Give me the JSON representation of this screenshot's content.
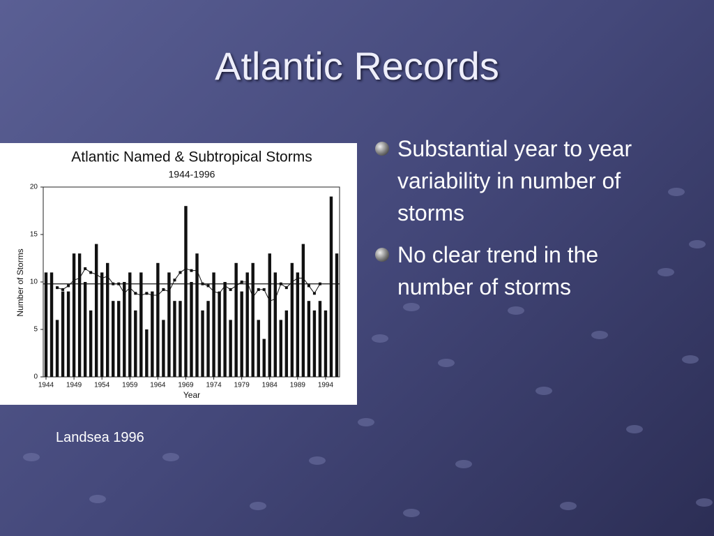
{
  "title": "Atlantic Records",
  "bullets": [
    "Substantial year to year variability in number of storms",
    "No clear trend in the number of storms"
  ],
  "caption": "Landsea 1996",
  "chart_data": {
    "type": "bar",
    "title": "Atlantic Named & Subtropical Storms",
    "subtitle": "1944-1996",
    "x_label": "Year",
    "y_label": "Number of Storms",
    "x": [
      1944,
      1945,
      1946,
      1947,
      1948,
      1949,
      1950,
      1951,
      1952,
      1953,
      1954,
      1955,
      1956,
      1957,
      1958,
      1959,
      1960,
      1961,
      1962,
      1963,
      1964,
      1965,
      1966,
      1967,
      1968,
      1969,
      1970,
      1971,
      1972,
      1973,
      1974,
      1975,
      1976,
      1977,
      1978,
      1979,
      1980,
      1981,
      1982,
      1983,
      1984,
      1985,
      1986,
      1987,
      1988,
      1989,
      1990,
      1991,
      1992,
      1993,
      1994,
      1995,
      1996
    ],
    "series": [
      {
        "type": "bar",
        "color": "#111111",
        "values": [
          11,
          11,
          6,
          9,
          9,
          13,
          13,
          10,
          7,
          14,
          11,
          12,
          8,
          8,
          10,
          11,
          7,
          11,
          5,
          9,
          12,
          6,
          11,
          8,
          8,
          18,
          10,
          13,
          7,
          8,
          11,
          9,
          10,
          6,
          12,
          9,
          11,
          12,
          6,
          4,
          13,
          11,
          6,
          7,
          12,
          11,
          14,
          8,
          7,
          8,
          7,
          19,
          13
        ]
      },
      {
        "type": "line",
        "color": "#111111",
        "values": [
          null,
          null,
          9.4,
          9.2,
          9.6,
          10.2,
          10.4,
          11.4,
          11,
          10.8,
          10.4,
          10.6,
          9.8,
          9.8,
          8.8,
          9.4,
          8.8,
          8.6,
          8.8,
          8.6,
          8.6,
          9.2,
          9,
          10.2,
          11,
          11.4,
          11.2,
          11.2,
          9.8,
          9.6,
          9,
          8.8,
          9.6,
          9.2,
          9.6,
          10,
          10,
          8.4,
          9.2,
          9.2,
          8,
          8.2,
          9.8,
          9.4,
          10,
          10.4,
          10.4,
          9.6,
          8.8,
          9.8,
          null,
          null,
          null
        ]
      }
    ],
    "mean": 9.8,
    "xlim": [
      1943.5,
      1996.5
    ],
    "xticks": [
      1944,
      1949,
      1954,
      1959,
      1964,
      1969,
      1974,
      1979,
      1984,
      1989,
      1994
    ],
    "ylim": [
      0,
      20
    ],
    "yticks": [
      0,
      5,
      10,
      15,
      20
    ]
  }
}
